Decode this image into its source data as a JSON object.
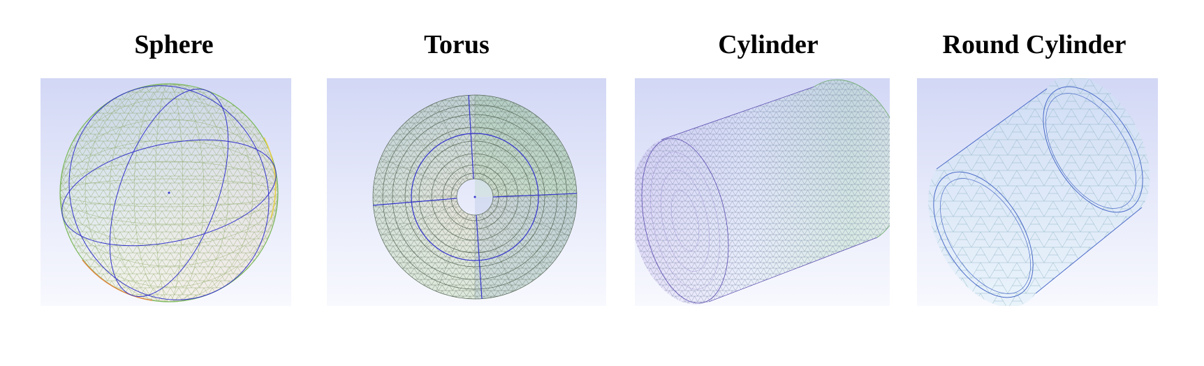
{
  "figure": {
    "panels": [
      {
        "title": "Sphere",
        "icon": "sphere-mesh-icon"
      },
      {
        "title": "Torus",
        "icon": "torus-mesh-icon"
      },
      {
        "title": "Cylinder",
        "icon": "cylinder-mesh-icon"
      },
      {
        "title": "Round Cylinder",
        "icon": "round-cylinder-mesh-icon"
      }
    ],
    "colors": {
      "background_top": "#d2d7f5",
      "background_bottom": "#f8f9fe",
      "feature_edges": "#3333cc",
      "mesh_green": "#5cb85c",
      "mesh_yellow": "#d8c840",
      "mesh_orange": "#e08840",
      "mesh_purple": "#9a7adc",
      "mesh_dark": "#556655"
    }
  }
}
